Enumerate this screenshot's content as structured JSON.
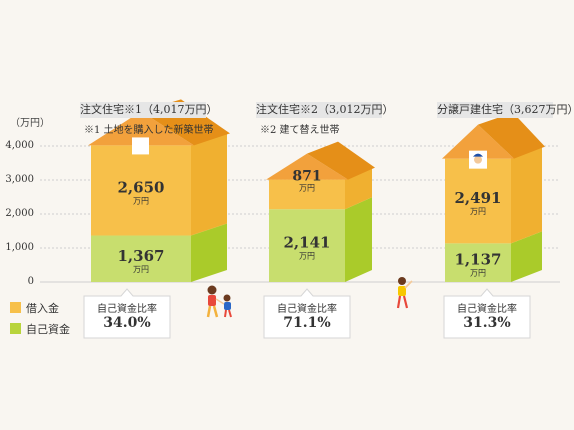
{
  "chart_data": {
    "type": "bar",
    "yunit": "（万円）",
    "yticks": [
      "4,000",
      "3,000",
      "2,000",
      "1,000",
      "0"
    ],
    "ylim": [
      0,
      4000
    ],
    "colors": {
      "loan": "#f7c04a",
      "loan_side": "#f0b030",
      "own": "#c8de6e",
      "own_side": "#aacb2a",
      "roof": "#f2a13c",
      "roof_side": "#e58f18",
      "grid": "#cfcfcf"
    },
    "legend": [
      {
        "name": "借入金",
        "color": "#f7c04a"
      },
      {
        "name": "自己資金",
        "color": "#b8d43c"
      }
    ],
    "houses": [
      {
        "title": "注文住宅※1（4,017万円）",
        "note": "※1 土地を購入した新築世帯",
        "loan": 2650,
        "loan_label": "2,650",
        "own": 1367,
        "own_label": "1,367",
        "unit": "万円",
        "ratio_label": "自己資金比率",
        "ratio": "34.0%"
      },
      {
        "title": "注文住宅※2（3,012万円）",
        "note": "※2 建て替え世帯",
        "loan": 871,
        "loan_label": "871",
        "own": 2141,
        "own_label": "2,141",
        "unit": "万円",
        "ratio_label": "自己資金比率",
        "ratio": "71.1%"
      },
      {
        "title": "分譲戸建住宅（3,627万円）",
        "note": "",
        "loan": 2491,
        "loan_label": "2,491",
        "own": 1137,
        "own_label": "1,137",
        "unit": "万円",
        "ratio_label": "自己資金比率",
        "ratio": "31.3%"
      }
    ]
  }
}
